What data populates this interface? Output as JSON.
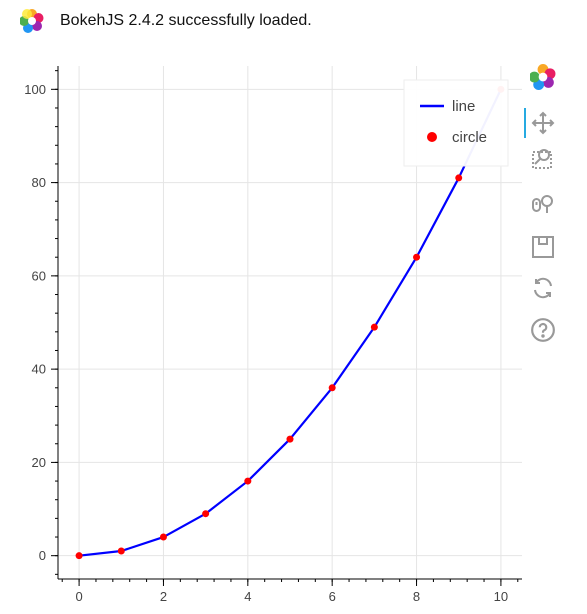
{
  "banner": {
    "message": "BokehJS 2.4.2 successfully loaded.",
    "logo_icon": "bokeh-logo-icon"
  },
  "toolbar": {
    "tools": [
      {
        "name": "bokeh-logo-icon",
        "active": false
      },
      {
        "name": "pan-icon",
        "active": true
      },
      {
        "name": "box-zoom-icon",
        "active": false
      },
      {
        "name": "wheel-zoom-icon",
        "active": false
      },
      {
        "name": "save-icon",
        "active": false
      },
      {
        "name": "reset-icon",
        "active": false
      },
      {
        "name": "help-icon",
        "active": false
      }
    ]
  },
  "colors": {
    "line": "#0000ff",
    "circle": "#ff0000",
    "grid": "#e5e5e5",
    "axis": "#000000",
    "tick_label": "#444444",
    "active_tool": "#26aae1"
  },
  "chart_data": {
    "type": "line",
    "x": [
      0,
      1,
      2,
      3,
      4,
      5,
      6,
      7,
      8,
      9,
      10
    ],
    "series": [
      {
        "name": "line",
        "type": "line",
        "values": [
          0,
          1,
          4,
          9,
          16,
          25,
          36,
          49,
          64,
          81,
          100
        ]
      },
      {
        "name": "circle",
        "type": "scatter",
        "values": [
          0,
          1,
          4,
          9,
          16,
          25,
          36,
          49,
          64,
          81,
          100
        ]
      }
    ],
    "xlim": [
      -0.5,
      10.5
    ],
    "ylim": [
      -5,
      105
    ],
    "xticks": [
      0,
      2,
      4,
      6,
      8,
      10
    ],
    "yticks": [
      0,
      20,
      40,
      60,
      80,
      100
    ],
    "grid": true,
    "legend": {
      "placement": "top-right",
      "entries": [
        "line",
        "circle"
      ]
    }
  }
}
